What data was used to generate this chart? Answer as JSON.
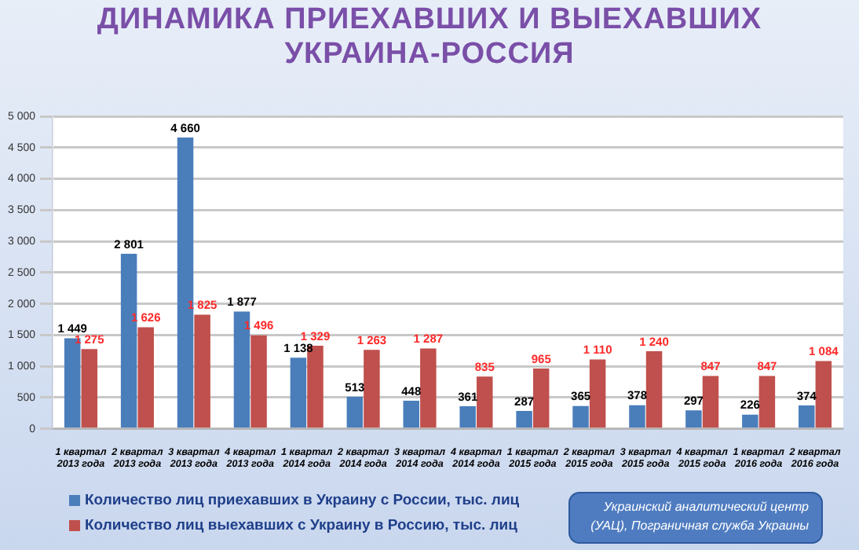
{
  "chart_data": {
    "type": "bar",
    "title": "ДИНАМИКА ПРИЕХАВШИХ И ВЫЕХАВШИХ\nУКРАИНА-РОССИЯ",
    "categories": [
      "1 квартал 2013 года",
      "2 квартал 2013 года",
      "3 квартал 2013 года",
      "4 квартал 2013 года",
      "1 квартал 2014 года",
      "2 квартал 2014 года",
      "3 квартал 2014 года",
      "4 квартал 2014 года",
      "1 квартал 2015 года",
      "2 квартал 2015 года",
      "3 квартал 2015 года",
      "4 квартал 2015 года",
      "1 квартал 2016 года",
      "2 квартал 2016 года"
    ],
    "series": [
      {
        "name": "Количество лиц приехавших в Украину с России, тыс. лиц",
        "color": "#4a7ebb",
        "values": [
          1449,
          2801,
          4660,
          1877,
          1138,
          513,
          448,
          361,
          287,
          365,
          378,
          297,
          226,
          374
        ]
      },
      {
        "name": "Количество лиц выехавших с Украину в Россию, тыс. лиц",
        "color": "#c0504d",
        "values": [
          1275,
          1626,
          1825,
          1496,
          1329,
          1263,
          1287,
          835,
          965,
          1110,
          1240,
          847,
          847,
          1084
        ]
      }
    ],
    "ylim": [
      0,
      5000
    ],
    "yticks": [
      {
        "value": 0,
        "label": "0"
      },
      {
        "value": 500,
        "label": "500"
      },
      {
        "value": 1000,
        "label": "1 000"
      },
      {
        "value": 1500,
        "label": "1 500"
      },
      {
        "value": 2000,
        "label": "2 000"
      },
      {
        "value": 2500,
        "label": "2 500"
      },
      {
        "value": 3000,
        "label": "3 000"
      },
      {
        "value": 3500,
        "label": "3 500"
      },
      {
        "value": 4000,
        "label": "4 000"
      },
      {
        "value": 4500,
        "label": "4 500"
      },
      {
        "value": 5000,
        "label": "5 000"
      }
    ],
    "grid": "y",
    "legend": "bottom left",
    "data_labels": true,
    "annotations": [
      "Украинский аналитический центр (УАЦ), Пограничная служба Украины"
    ]
  }
}
